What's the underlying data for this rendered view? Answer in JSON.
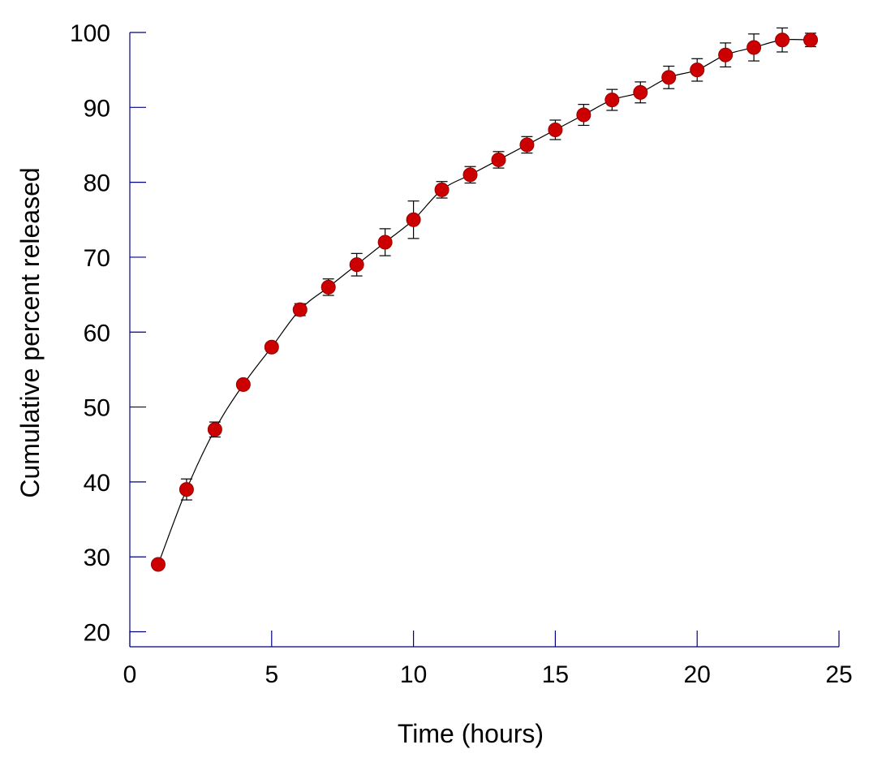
{
  "chart_data": {
    "type": "scatter",
    "xlabel": "Time (hours)",
    "ylabel": "Cumulative percent released",
    "xlim": [
      0,
      25
    ],
    "ylim": [
      18,
      100
    ],
    "xticks": [
      0,
      5,
      10,
      15,
      20,
      25
    ],
    "yticks": [
      20,
      30,
      40,
      50,
      60,
      70,
      80,
      90,
      100
    ],
    "grid": false,
    "legend": "none",
    "series": [
      {
        "x": [
          1,
          2,
          3,
          4,
          5,
          6,
          7,
          8,
          9,
          10,
          11,
          12,
          13,
          14,
          15,
          16,
          17,
          18,
          19,
          20,
          21,
          22,
          23,
          24
        ],
        "y": [
          29,
          39,
          47,
          53,
          58,
          63,
          66,
          69,
          72,
          75,
          79,
          81,
          83,
          85,
          87,
          89,
          91,
          92,
          94,
          95,
          97,
          98,
          99,
          99
        ],
        "error": [
          0.5,
          1.4,
          1.0,
          0.5,
          0.6,
          0.8,
          1.1,
          1.5,
          1.8,
          2.5,
          1.1,
          1.1,
          1.1,
          1.1,
          1.3,
          1.4,
          1.4,
          1.4,
          1.5,
          1.5,
          1.6,
          1.8,
          1.6,
          0.9
        ]
      }
    ],
    "colors": {
      "marker_fill": "#cc0000",
      "marker_stroke": "#990000",
      "line": "#000000",
      "axis": "#000080",
      "errorbar": "#000000"
    }
  }
}
